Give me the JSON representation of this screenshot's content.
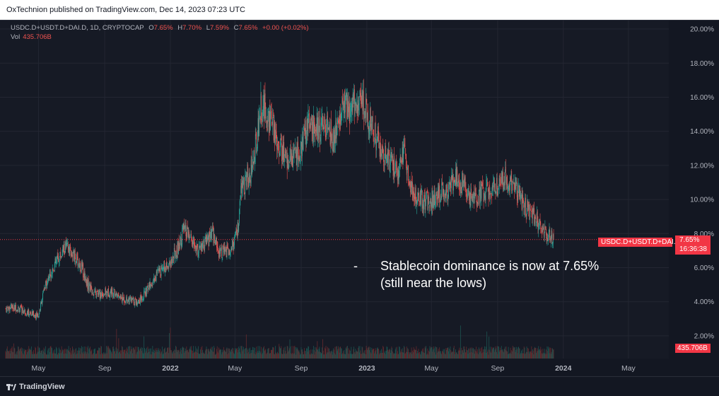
{
  "header": {
    "published_text": "OxTechnion published on TradingView.com, Dec 14, 2023 07:23 UTC"
  },
  "legend": {
    "symbol_line": "USDC.D+USDT.D+DAI.D, 1D, CRYPTOCAP",
    "o_label": "O",
    "o_value": "7.65%",
    "h_label": "H",
    "h_value": "7.70%",
    "l_label": "L",
    "l_value": "7.59%",
    "c_label": "C",
    "c_value": "7.65%",
    "change": "+0.00 (+0.02%)",
    "vol_label": "Vol",
    "vol_value": "435.706B"
  },
  "annotation": {
    "dash": "-",
    "text": "Stablecoin dominance is now at 7.65% (still near the lows)"
  },
  "badges": {
    "symbol": "USDC.D+USDT.D+DAI.D",
    "price": "7.65%",
    "countdown": "16:36:38",
    "volume": "435.706B"
  },
  "footer": {
    "brand": "TradingView"
  },
  "colors": {
    "background": "#161a25",
    "up": "#26a69a",
    "down": "#ef5350",
    "grid": "#232632",
    "axis_text": "#b2b5be",
    "price_line": "#f23645"
  },
  "chart_data": {
    "type": "candlestick",
    "title": "USDC.D+USDT.D+DAI.D, 1D, CRYPTOCAP",
    "y_axis": {
      "unit": "%",
      "range": [
        1.0,
        20.5
      ],
      "ticks": [
        "2.00%",
        "4.00%",
        "6.00%",
        "8.00%",
        "10.00%",
        "12.00%",
        "14.00%",
        "16.00%",
        "18.00%",
        "20.00%"
      ]
    },
    "x_axis": {
      "range": [
        "2021-03-01",
        "2024-07-15"
      ],
      "ticks": [
        {
          "label": "May",
          "date": "2021-05-01"
        },
        {
          "label": "Sep",
          "date": "2021-09-01"
        },
        {
          "label": "2022",
          "date": "2022-01-01"
        },
        {
          "label": "May",
          "date": "2022-05-01"
        },
        {
          "label": "Sep",
          "date": "2022-09-01"
        },
        {
          "label": "2023",
          "date": "2023-01-01"
        },
        {
          "label": "May",
          "date": "2023-05-01"
        },
        {
          "label": "Sep",
          "date": "2023-09-01"
        },
        {
          "label": "2024",
          "date": "2024-01-01"
        },
        {
          "label": "May",
          "date": "2024-05-01"
        }
      ]
    },
    "series": [
      {
        "name": "USDC.D+USDT.D+DAI.D",
        "x": [
          "2021-03-01",
          "2021-03-15",
          "2021-04-01",
          "2021-04-15",
          "2021-05-01",
          "2021-05-10",
          "2021-05-20",
          "2021-06-01",
          "2021-06-20",
          "2021-07-01",
          "2021-07-20",
          "2021-08-01",
          "2021-08-15",
          "2021-09-01",
          "2021-09-15",
          "2021-10-01",
          "2021-10-15",
          "2021-11-01",
          "2021-11-15",
          "2021-12-01",
          "2021-12-15",
          "2022-01-01",
          "2022-01-15",
          "2022-01-25",
          "2022-02-05",
          "2022-02-20",
          "2022-03-05",
          "2022-03-20",
          "2022-04-01",
          "2022-04-15",
          "2022-05-01",
          "2022-05-08",
          "2022-05-12",
          "2022-05-20",
          "2022-06-01",
          "2022-06-10",
          "2022-06-18",
          "2022-07-01",
          "2022-07-15",
          "2022-08-01",
          "2022-08-15",
          "2022-09-01",
          "2022-09-15",
          "2022-10-01",
          "2022-10-15",
          "2022-11-01",
          "2022-11-10",
          "2022-11-20",
          "2022-12-01",
          "2022-12-15",
          "2023-01-01",
          "2023-01-15",
          "2023-02-01",
          "2023-02-15",
          "2023-03-01",
          "2023-03-10",
          "2023-03-20",
          "2023-04-01",
          "2023-04-15",
          "2023-05-01",
          "2023-05-15",
          "2023-06-01",
          "2023-06-15",
          "2023-07-01",
          "2023-07-15",
          "2023-08-01",
          "2023-08-15",
          "2023-09-01",
          "2023-09-15",
          "2023-10-01",
          "2023-10-15",
          "2023-11-01",
          "2023-11-15",
          "2023-12-01",
          "2023-12-14"
        ],
        "close": [
          3.6,
          3.7,
          3.5,
          3.3,
          3.2,
          4.5,
          5.5,
          6.2,
          7.2,
          6.9,
          6.0,
          5.0,
          4.4,
          4.5,
          4.6,
          4.2,
          4.1,
          4.0,
          4.5,
          5.3,
          6.0,
          6.3,
          7.2,
          8.2,
          7.8,
          7.0,
          7.3,
          8.0,
          7.0,
          6.9,
          7.5,
          8.5,
          10.5,
          11.0,
          11.8,
          13.5,
          15.5,
          15.0,
          13.8,
          12.5,
          12.2,
          13.0,
          14.5,
          14.0,
          14.3,
          13.5,
          14.5,
          15.6,
          15.2,
          15.8,
          15.2,
          13.9,
          12.8,
          12.0,
          11.8,
          13.0,
          11.0,
          10.2,
          10.0,
          9.9,
          10.3,
          10.5,
          11.3,
          10.8,
          10.0,
          10.4,
          10.6,
          10.8,
          11.2,
          11.0,
          9.9,
          9.2,
          8.8,
          8.0,
          7.65
        ]
      }
    ],
    "volume": {
      "label": "Vol",
      "last": "435.706B"
    }
  }
}
